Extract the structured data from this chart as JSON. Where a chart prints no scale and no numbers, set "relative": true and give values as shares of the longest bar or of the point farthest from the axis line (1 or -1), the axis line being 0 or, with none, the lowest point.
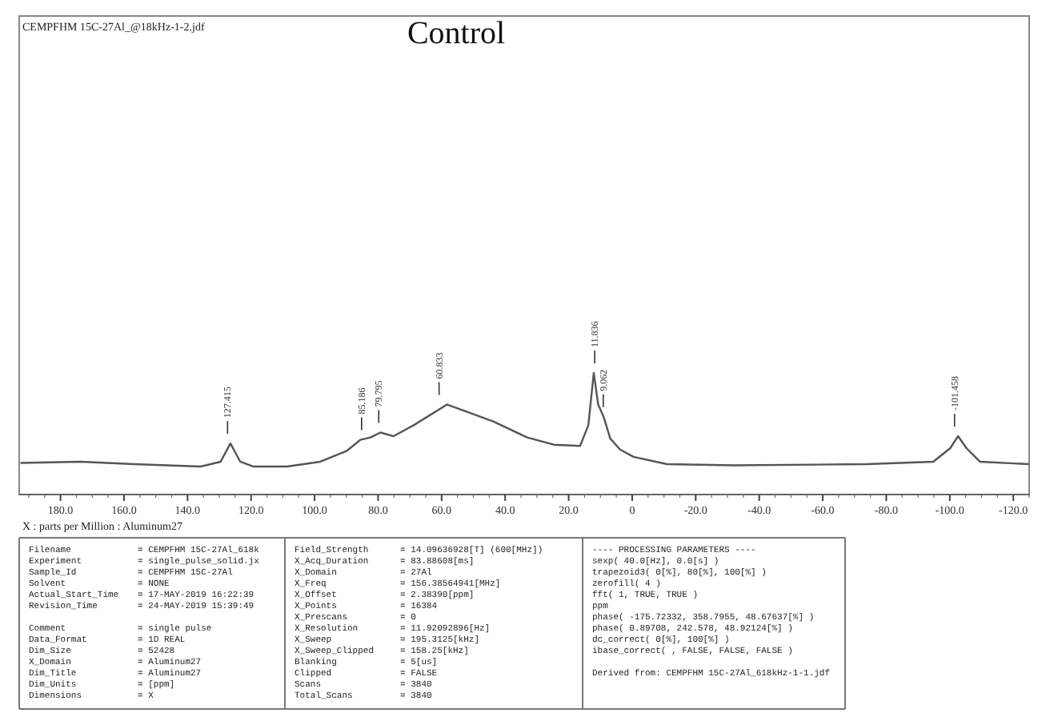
{
  "chart_data": {
    "type": "line",
    "title": "Control",
    "xlabel": "X : parts per Million : Aluminum27",
    "relative": true,
    "marker": "none",
    "line_style": "solid",
    "xlim": [
      193,
      -125
    ],
    "xticks": [
      {
        "value": 180,
        "label": "180.0"
      },
      {
        "value": 160,
        "label": "160.0"
      },
      {
        "value": 140,
        "label": "140.0"
      },
      {
        "value": 120,
        "label": "120.0"
      },
      {
        "value": 100,
        "label": "100.0"
      },
      {
        "value": 80,
        "label": "80.0"
      },
      {
        "value": 60,
        "label": "60.0"
      },
      {
        "value": 40,
        "label": "40.0"
      },
      {
        "value": 20,
        "label": "20.0"
      },
      {
        "value": 0,
        "label": "0"
      },
      {
        "value": -20,
        "label": "-20.0"
      },
      {
        "value": -40,
        "label": "-40.0"
      },
      {
        "value": -60,
        "label": "-60.0"
      },
      {
        "value": -80,
        "label": "-80.0"
      },
      {
        "value": -100,
        "label": "-100.0"
      },
      {
        "value": -120,
        "label": "-120.0"
      }
    ],
    "series": [
      {
        "color": "#555555",
        "x": [
          192.6,
          173.7,
          156.9,
          135.9,
          129.6,
          126.5,
          123.4,
          119.2,
          108.7,
          98.2,
          89.8,
          85.6,
          82.4,
          79.3,
          75.1,
          68.8,
          58.3,
          52.0,
          43.6,
          33.1,
          24.7,
          16.4,
          13.8,
          12.1,
          10.7,
          9.0,
          6.9,
          3.8,
          -0.4,
          -10.9,
          -31.9,
          -73.9,
          -94.8,
          -100.1,
          -102.6,
          -105.3,
          -109.5,
          -124.8
        ],
        "values": [
          0.26,
          0.27,
          0.25,
          0.23,
          0.27,
          0.42,
          0.27,
          0.23,
          0.23,
          0.27,
          0.36,
          0.45,
          0.47,
          0.51,
          0.48,
          0.57,
          0.74,
          0.68,
          0.6,
          0.47,
          0.41,
          0.4,
          0.57,
          1.0,
          0.74,
          0.64,
          0.46,
          0.37,
          0.31,
          0.25,
          0.24,
          0.25,
          0.27,
          0.38,
          0.48,
          0.38,
          0.27,
          0.25
        ]
      }
    ],
    "annotations": [
      "CEMPFHM 15C-27Al_@18kHz-1-2.jdf",
      {
        "text": "127.415",
        "x": 127.4,
        "y": 0.42
      },
      {
        "text": "85.186",
        "x": 85.2,
        "y": 0.45
      },
      {
        "text": "79.795",
        "x": 79.8,
        "y": 0.51
      },
      {
        "text": "60.833",
        "x": 60.8,
        "y": 0.74
      },
      {
        "text": "11.836",
        "x": 11.8,
        "y": 1.0
      },
      {
        "text": "9.062",
        "x": 9.1,
        "y": 0.64
      },
      {
        "text": "-101.458",
        "x": -101.5,
        "y": 0.48
      },
      "Filename = CEMPFHM 15C-27Al_618k\nExperiment = single_pulse_solid.jx\nSample_Id = CEMPFHM 15C-27Al\nSolvent = NONE\nActual_Start_Time = 17-MAY-2019 16:22:39\nRevision_Time = 24-MAY-2019 15:39:49\n\nComment = single pulse\nData_Format = 1D REAL\nDim_Size = 52428\nX_Domain = Aluminum27\nDim_Title = Aluminum27\nDim_Units = [ppm]\nDimensions = X",
      "Field_Strength = 14.09636928[T] (600[MHz])\nX_Acq_Duration = 83.88608[ms]\nX_Domain = 27Al\nX_Freq = 156.38564941[MHz]\nX_Offset = 2.38390[ppm]\nX_Points = 16384\nX_Prescans = 0\nX_Resolution = 11.92092896[Hz]\nX_Sweep = 195.3125[kHz]\nX_Sweep_Clipped = 158.25[kHz]\nBlanking = 5[us]\nClipped = FALSE\nScans = 3840\nTotal_Scans = 3840",
      "---- PROCESSING PARAMETERS ----\nsexp( 40.0[Hz], 0.0[s] )\ntrapezoid3( 0[%], 80[%], 100[%] )\nzerofill( 4 )\nfft( 1, TRUE, TRUE )\nppm\nphase( -175.72332, 358.7955, 48.67637[%] )\nphase( 0.89708, 242.578, 48.92124[%] )\ndc_correct( 0[%], 100[%] )\nibase_correct( , FALSE, FALSE, FALSE )\n\nDerived from: CEMPFHM 15C-27Al_618kHz-1-1.jdf"
    ]
  }
}
